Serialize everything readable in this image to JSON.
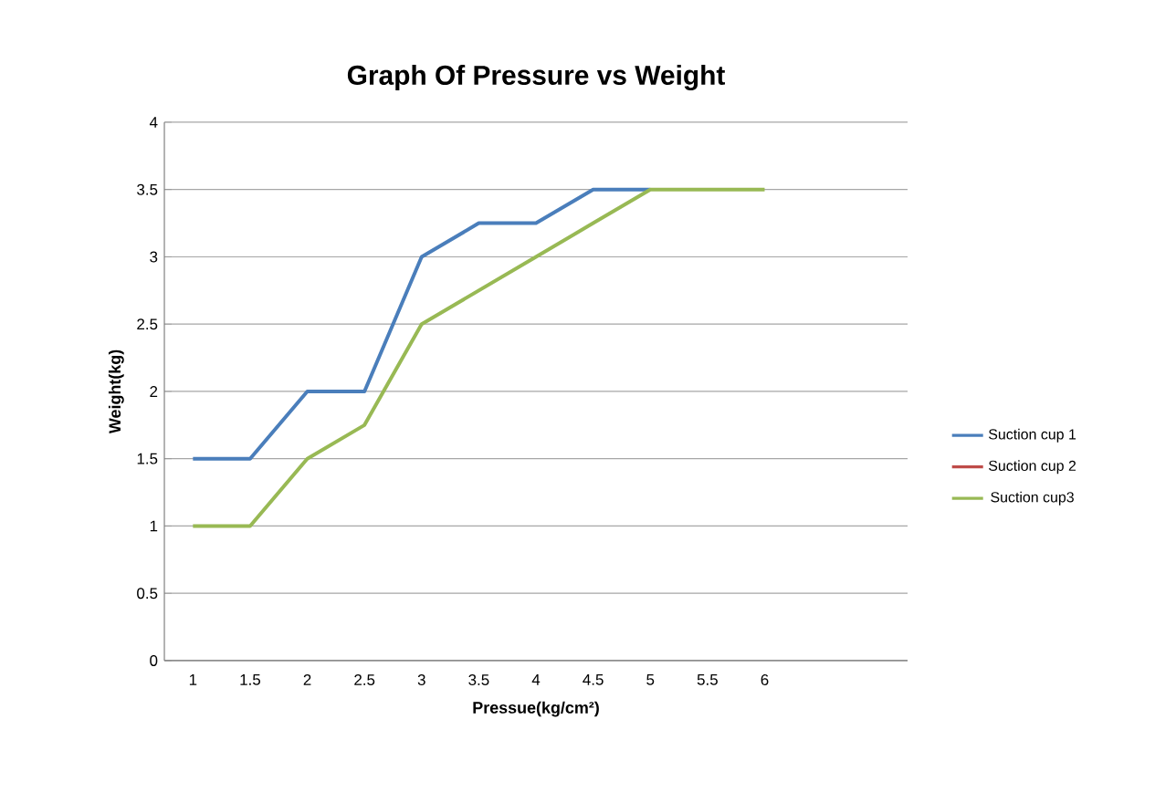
{
  "chart_data": {
    "type": "line",
    "title": "Graph Of Pressure vs Weight",
    "xlabel": "Pressue(kg/cm²)",
    "ylabel": "Weight(kg)",
    "categories": [
      "1",
      "1.5",
      "2",
      "2.5",
      "3",
      "3.5",
      "4",
      "4.5",
      "5",
      "5.5",
      "6",
      null,
      null
    ],
    "series": [
      {
        "name": "Suction cup 1",
        "color": "#4a7ebb",
        "values": [
          1.5,
          1.5,
          2,
          2,
          3,
          3.25,
          3.25,
          3.5,
          3.5,
          null,
          null,
          null,
          null
        ]
      },
      {
        "name": "Suction cup 2",
        "color": "#be4b48",
        "values": [
          null,
          null,
          null,
          null,
          null,
          null,
          null,
          null,
          null,
          null,
          null,
          null,
          null
        ]
      },
      {
        "name": "Suction cup3",
        "color": "#98b954",
        "values": [
          1,
          1,
          1.5,
          1.75,
          2.5,
          2.75,
          3,
          3.25,
          3.5,
          3.5,
          3.5,
          null,
          null
        ]
      }
    ],
    "ylim": [
      0,
      4
    ],
    "yticks": [
      0,
      0.5,
      1,
      1.5,
      2,
      2.5,
      3,
      3.5,
      4
    ],
    "grid": "y",
    "legend": "right",
    "marker": "none",
    "line_style": "solid"
  }
}
